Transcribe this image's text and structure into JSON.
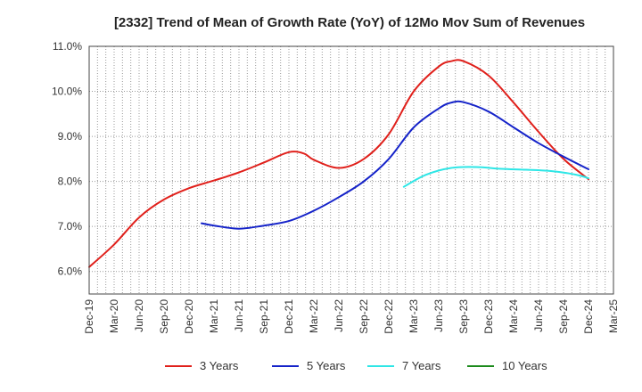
{
  "chart_data": {
    "type": "line",
    "title": "[2332]  Trend of Mean of Growth Rate (YoY) of 12Mo Mov Sum of Revenues",
    "xlabel": "",
    "ylabel": "",
    "ylim": [
      5.5,
      11.0
    ],
    "y_ticks": [
      6.0,
      7.0,
      8.0,
      9.0,
      10.0,
      11.0
    ],
    "y_tick_labels": [
      "6.0%",
      "7.0%",
      "8.0%",
      "9.0%",
      "10.0%",
      "11.0%"
    ],
    "x_tick_labels": [
      "Dec-19",
      "Mar-20",
      "Jun-20",
      "Sep-20",
      "Dec-20",
      "Mar-21",
      "Jun-21",
      "Sep-21",
      "Dec-21",
      "Mar-22",
      "Jun-22",
      "Sep-22",
      "Dec-22",
      "Mar-23",
      "Jun-23",
      "Sep-23",
      "Dec-23",
      "Mar-24",
      "Jun-24",
      "Sep-24",
      "Dec-24",
      "Mar-25"
    ],
    "grid": true,
    "legend_position": "bottom",
    "series": [
      {
        "name": "3 Years",
        "color": "#e0201b",
        "points": [
          [
            0,
            6.1
          ],
          [
            1,
            6.6
          ],
          [
            2,
            7.2
          ],
          [
            3,
            7.6
          ],
          [
            4,
            7.85
          ],
          [
            5,
            8.02
          ],
          [
            6,
            8.2
          ],
          [
            7,
            8.42
          ],
          [
            8,
            8.65
          ],
          [
            8.6,
            8.62
          ],
          [
            9,
            8.48
          ],
          [
            10,
            8.3
          ],
          [
            11,
            8.5
          ],
          [
            12,
            9.05
          ],
          [
            13,
            10.0
          ],
          [
            14,
            10.55
          ],
          [
            14.5,
            10.67
          ],
          [
            15,
            10.67
          ],
          [
            16,
            10.35
          ],
          [
            17,
            9.75
          ],
          [
            18,
            9.1
          ],
          [
            19,
            8.5
          ],
          [
            20,
            8.05
          ]
        ]
      },
      {
        "name": "5 Years",
        "color": "#1523c9",
        "points": [
          [
            4.5,
            7.07
          ],
          [
            5,
            7.02
          ],
          [
            6,
            6.95
          ],
          [
            7,
            7.02
          ],
          [
            8,
            7.12
          ],
          [
            9,
            7.35
          ],
          [
            10,
            7.65
          ],
          [
            11,
            8.0
          ],
          [
            12,
            8.5
          ],
          [
            13,
            9.2
          ],
          [
            14,
            9.62
          ],
          [
            14.5,
            9.75
          ],
          [
            15,
            9.76
          ],
          [
            16,
            9.55
          ],
          [
            17,
            9.2
          ],
          [
            18,
            8.85
          ],
          [
            19,
            8.55
          ],
          [
            20,
            8.27
          ]
        ]
      },
      {
        "name": "7 Years",
        "color": "#2ee6e6",
        "points": [
          [
            12.6,
            7.88
          ],
          [
            13.5,
            8.15
          ],
          [
            14.5,
            8.3
          ],
          [
            15.5,
            8.32
          ],
          [
            16.5,
            8.28
          ],
          [
            17.5,
            8.26
          ],
          [
            18.5,
            8.23
          ],
          [
            19.5,
            8.15
          ],
          [
            20,
            8.07
          ]
        ]
      },
      {
        "name": "10 Years",
        "color": "#1c8a1c",
        "points": []
      }
    ]
  }
}
